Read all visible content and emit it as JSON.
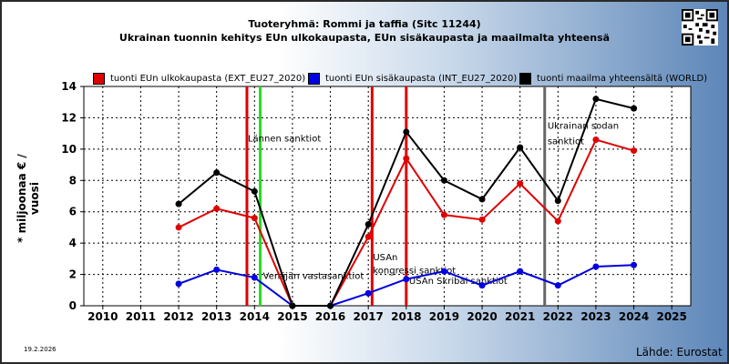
{
  "header": {
    "title": "Tuoteryhmä: Rommi ja taffia (Sitc 11244)",
    "subtitle": "Ukrainan tuonnin kehitys EUn ulkokaupasta, EUn sisäkaupasta ja maailmalta yhteensä",
    "qr_icon": "qr-code-icon"
  },
  "footer": {
    "date": "19.2.2026",
    "source": "Lähde: Eurostat"
  },
  "chart_data": {
    "type": "line",
    "ylabel": "* miljoonaa € / vuosi",
    "xlabel": "",
    "categories": [
      "2010",
      "2011",
      "2012",
      "2013",
      "2014",
      "2015",
      "2016",
      "2017",
      "2018",
      "2019",
      "2020",
      "2021",
      "2022",
      "2023",
      "2024",
      "2025"
    ],
    "ylim": [
      0,
      14
    ],
    "yticks": [
      0,
      2,
      4,
      6,
      8,
      10,
      12,
      14
    ],
    "grid": true,
    "legend_position": "top",
    "series": [
      {
        "name": "tuonti EUn ulkokaupasta (EXT_EU27_2020)",
        "color": "#e00000",
        "values": [
          null,
          null,
          5.0,
          6.2,
          5.6,
          0,
          0,
          4.4,
          9.4,
          5.8,
          5.5,
          7.8,
          5.4,
          10.6,
          9.9,
          null
        ]
      },
      {
        "name": "tuonti EUn sisäkaupasta (INT_EU27_2020)",
        "color": "#0000e0",
        "values": [
          null,
          null,
          1.4,
          2.3,
          1.8,
          0,
          0,
          0.8,
          1.7,
          2.2,
          1.3,
          2.2,
          1.3,
          2.5,
          2.6,
          null
        ]
      },
      {
        "name": "tuonti maailma yhteensältä (WORLD)",
        "color": "#000000",
        "values": [
          null,
          null,
          6.5,
          8.5,
          7.3,
          0,
          0,
          5.2,
          11.1,
          8.0,
          6.8,
          10.1,
          6.7,
          13.2,
          12.6,
          null
        ]
      }
    ],
    "vlines": [
      {
        "x": 2013.8,
        "color": "#e00000"
      },
      {
        "x": 2014.15,
        "color": "#22dd22"
      },
      {
        "x": 2017.1,
        "color": "#e00000"
      },
      {
        "x": 2018.0,
        "color": "#e00000"
      },
      {
        "x": 2021.65,
        "color": "#666666"
      }
    ],
    "annotations": [
      {
        "text": "Lännen sanktiot",
        "x": 2013.8,
        "y": 10.5
      },
      {
        "text": "Venäjän vastasanktiot",
        "x": 2014.2,
        "y": 1.7
      },
      {
        "text": "USAn",
        "x": 2017.1,
        "y": 2.9
      },
      {
        "text": "kongressi sanktiot",
        "x": 2017.1,
        "y": 2.05
      },
      {
        "text": "USAn Skribal sanktiot",
        "x": 2018.05,
        "y": 1.4
      },
      {
        "text": "Ukrainan sodan",
        "x": 2021.7,
        "y": 11.3
      },
      {
        "text": "sanktiot",
        "x": 2021.7,
        "y": 10.3
      }
    ]
  }
}
